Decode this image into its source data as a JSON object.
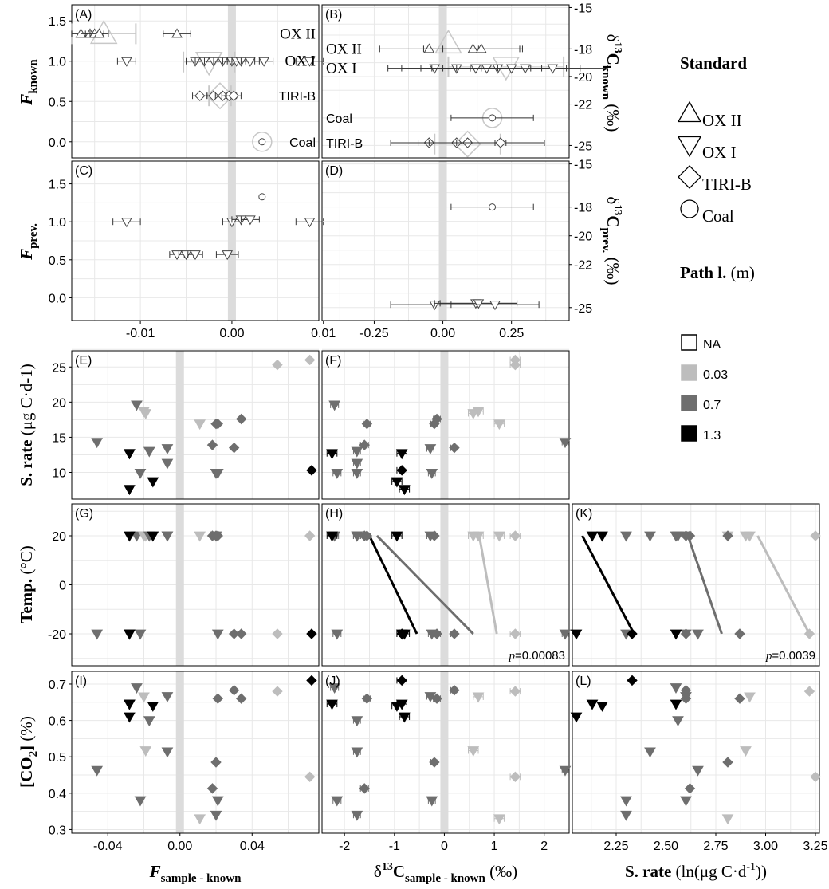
{
  "chart_data": {
    "type": "scatter",
    "colors": {
      "NA": "#ffffff",
      "0.03": "#bdbdbd",
      "0.7": "#6e6e6e",
      "1.3": "#000000",
      "ref": "#c8c8c8",
      "zero_band": "#dcdcdc"
    },
    "x_axes": {
      "F": {
        "label": "F",
        "sub": "sample - known",
        "ticks": [
          "-0.04",
          "0.00",
          "0.04"
        ]
      },
      "d13C": {
        "label": "δ13C",
        "sub": "sample - known",
        "unit": "(‰)",
        "ticks": [
          "-2",
          "-1",
          "0",
          "1",
          "2"
        ]
      },
      "srate": {
        "label": "S. rate",
        "unit": "(ln(μg C·d-1))",
        "ticks": [
          "2.25",
          "2.50",
          "2.75",
          "3.00",
          "3.25"
        ]
      },
      "F_top": {
        "ticks": [
          "-0.01",
          "0.00",
          "0.01"
        ]
      },
      "d13C_top": {
        "ticks": [
          "-0.25",
          "0.00",
          "0.25"
        ]
      }
    },
    "y_axes": {
      "F_known": {
        "label": "F",
        "sub": "known",
        "ticks": [
          "0.0",
          "0.5",
          "1.0",
          "1.5"
        ]
      },
      "d13C_known": {
        "label": "δ13C",
        "sub": "known",
        "unit": "(‰)",
        "ticks": [
          "-15",
          "-18",
          "-20",
          "-22",
          "-25"
        ]
      },
      "F_prev": {
        "label": "F",
        "sub": "prev.",
        "ticks": [
          "0.0",
          "0.5",
          "1.0",
          "1.5"
        ]
      },
      "d13C_prev": {
        "label": "δ13C",
        "sub": "prev.",
        "unit": "(‰)",
        "ticks": [
          "-15",
          "-18",
          "-20",
          "-22",
          "-25"
        ]
      },
      "srate": {
        "label": "S. rate",
        "unit": "(μg C·d-1)",
        "ticks": [
          "10",
          "15",
          "20",
          "25"
        ]
      },
      "temp": {
        "label": "Temp.",
        "unit": "(°C)",
        "ticks": [
          "-20",
          "0",
          "20"
        ]
      },
      "co2": {
        "label": "[CO2]",
        "unit": "(%)",
        "ticks": [
          "0.3",
          "0.4",
          "0.5",
          "0.6",
          "0.7"
        ]
      }
    },
    "panels": [
      {
        "id": "A",
        "label": "(A)",
        "annotations": [
          "OX II",
          "OX I",
          "TIRI-B",
          "Coal"
        ],
        "points": [
          {
            "s": "ox2",
            "x": -0.0165,
            "y": 1.34,
            "xe": 0.001
          },
          {
            "s": "ox2",
            "x": -0.0155,
            "y": 1.34,
            "xe": 0.001
          },
          {
            "s": "ox2",
            "x": -0.015,
            "y": 1.34,
            "xe": 0.001
          },
          {
            "s": "ox2",
            "x": -0.0145,
            "y": 1.34,
            "xe": 0.001
          },
          {
            "s": "ox2",
            "x": -0.006,
            "y": 1.34,
            "xe": 0.0015
          },
          {
            "s": "ox1",
            "x": -0.0115,
            "y": 1.0,
            "xe": 0.001
          },
          {
            "s": "ox1",
            "x": -0.004,
            "y": 1.0,
            "xe": 0.001
          },
          {
            "s": "ox1",
            "x": -0.003,
            "y": 1.0,
            "xe": 0.001
          },
          {
            "s": "ox1",
            "x": -0.002,
            "y": 1.0,
            "xe": 0.001
          },
          {
            "s": "ox1",
            "x": -0.001,
            "y": 1.0,
            "xe": 0.001
          },
          {
            "s": "ox1",
            "x": 0.0,
            "y": 1.0,
            "xe": 0.001
          },
          {
            "s": "ox1",
            "x": 0.0005,
            "y": 1.0,
            "xe": 0.001
          },
          {
            "s": "ox1",
            "x": 0.001,
            "y": 1.0,
            "xe": 0.001
          },
          {
            "s": "ox1",
            "x": 0.002,
            "y": 1.0,
            "xe": 0.001
          },
          {
            "s": "ox1",
            "x": 0.0035,
            "y": 1.0,
            "xe": 0.001
          },
          {
            "s": "ox1",
            "x": 0.0085,
            "y": 1.0,
            "xe": 0.0015
          },
          {
            "s": "tirib",
            "x": -0.0035,
            "y": 0.57,
            "xe": 0.0008
          },
          {
            "s": "tirib",
            "x": -0.002,
            "y": 0.57,
            "xe": 0.0008
          },
          {
            "s": "tirib",
            "x": -0.001,
            "y": 0.57,
            "xe": 0.0008
          },
          {
            "s": "tirib",
            "x": -0.0003,
            "y": 0.57,
            "xe": 0.0008
          },
          {
            "s": "tirib",
            "x": 0.0002,
            "y": 0.57,
            "xe": 0.0008
          },
          {
            "s": "coal",
            "x": 0.0033,
            "y": 0.0,
            "xe": 0
          }
        ],
        "refs": [
          {
            "s": "ox2",
            "x": -0.014,
            "y": 1.34,
            "xe": 0.0035
          },
          {
            "s": "ox1",
            "x": -0.0025,
            "y": 0.99,
            "xe": 0.0028
          },
          {
            "s": "tirib",
            "x": -0.0013,
            "y": 0.57,
            "xe": 0.0012
          },
          {
            "s": "coal",
            "x": 0.0033,
            "y": 0.0,
            "xe": 0
          }
        ]
      },
      {
        "id": "B",
        "label": "(B)",
        "annotations": [
          "OX II",
          "OX I",
          "Coal",
          "TIRI-B"
        ],
        "points": [
          {
            "s": "ox2",
            "x": -0.05,
            "y": -18.0,
            "xe": 0.18
          },
          {
            "s": "ox2",
            "x": 0.11,
            "y": -18.0,
            "xe": 0.18
          },
          {
            "s": "ox2",
            "x": 0.14,
            "y": -18.0,
            "xe": 0.14
          },
          {
            "s": "ox1",
            "x": -0.03,
            "y": -19.4,
            "xe": 0.17
          },
          {
            "s": "ox1",
            "x": 0.05,
            "y": -19.4,
            "xe": 0.2
          },
          {
            "s": "ox1",
            "x": 0.12,
            "y": -19.4,
            "xe": 0.2
          },
          {
            "s": "ox1",
            "x": 0.16,
            "y": -19.4,
            "xe": 0.2
          },
          {
            "s": "ox1",
            "x": 0.2,
            "y": -19.4,
            "xe": 0.2
          },
          {
            "s": "ox1",
            "x": 0.25,
            "y": -19.4,
            "xe": 0.2
          },
          {
            "s": "ox1",
            "x": 0.3,
            "y": -19.4,
            "xe": 0.2
          },
          {
            "s": "ox1",
            "x": 0.4,
            "y": -19.4,
            "xe": 0.2
          },
          {
            "s": "coal",
            "x": 0.18,
            "y": -23.0,
            "xe": 0.15
          },
          {
            "s": "tirib",
            "x": -0.05,
            "y": -24.8,
            "xe": 0.14
          },
          {
            "s": "tirib",
            "x": 0.05,
            "y": -24.8,
            "xe": 0.14
          },
          {
            "s": "tirib",
            "x": 0.09,
            "y": -24.8,
            "xe": 0.14
          },
          {
            "s": "tirib",
            "x": 0.21,
            "y": -24.8,
            "xe": 0.16
          }
        ],
        "refs": [
          {
            "s": "ox2",
            "x": 0.02,
            "y": -17.6,
            "xe": 0.0
          },
          {
            "s": "ox1",
            "x": 0.23,
            "y": -19.3,
            "xe": 0.21
          },
          {
            "s": "coal",
            "x": 0.18,
            "y": -23.0,
            "xe": 0
          },
          {
            "s": "tirib",
            "x": 0.09,
            "y": -24.9,
            "xe": 0.12
          }
        ]
      },
      {
        "id": "C",
        "label": "(C)",
        "points": [
          {
            "s": "coal",
            "x": 0.0033,
            "y": 1.33,
            "xe": 0
          },
          {
            "s": "ox1",
            "x": -0.0115,
            "y": 1.0,
            "xe": 0.0015
          },
          {
            "s": "ox1",
            "x": 0.0,
            "y": 1.0,
            "xe": 0.001
          },
          {
            "s": "ox1",
            "x": 0.001,
            "y": 1.03,
            "xe": 0.001
          },
          {
            "s": "ox1",
            "x": 0.002,
            "y": 1.03,
            "xe": 0.001
          },
          {
            "s": "ox1",
            "x": 0.0085,
            "y": 1.0,
            "xe": 0.0015
          },
          {
            "s": "ox1",
            "x": -0.006,
            "y": 0.57,
            "xe": 0.0008
          },
          {
            "s": "ox1",
            "x": -0.005,
            "y": 0.57,
            "xe": 0.0008
          },
          {
            "s": "ox1",
            "x": -0.004,
            "y": 0.57,
            "xe": 0.0008
          },
          {
            "s": "ox1",
            "x": -0.0005,
            "y": 0.57,
            "xe": 0.0012
          }
        ]
      },
      {
        "id": "D",
        "label": "(D)",
        "points": [
          {
            "s": "coal",
            "x": 0.18,
            "y": -18.0,
            "xe": 0.15
          },
          {
            "s": "ox1",
            "x": -0.03,
            "y": -24.8,
            "xe": 0.16
          },
          {
            "s": "ox1",
            "x": 0.12,
            "y": -24.7,
            "xe": 0.15
          },
          {
            "s": "ox1",
            "x": 0.13,
            "y": -24.7,
            "xe": 0.14
          },
          {
            "s": "ox1",
            "x": 0.19,
            "y": -24.8,
            "xe": 0.16
          }
        ]
      },
      {
        "id": "E",
        "label": "(E)"
      },
      {
        "id": "F",
        "label": "(F)"
      },
      {
        "id": "G",
        "label": "(G)"
      },
      {
        "id": "H",
        "label": "(H)",
        "pvalue": "p=0.00083"
      },
      {
        "id": "K",
        "label": "(K)",
        "pvalue": "p=0.0039"
      },
      {
        "id": "I",
        "label": "(I)"
      },
      {
        "id": "J",
        "label": "(J)"
      },
      {
        "id": "L",
        "label": "(L)"
      }
    ],
    "samples": [
      {
        "g": "0.7",
        "m": "tri",
        "F": -0.046,
        "d": 2.42,
        "dx": 0.06,
        "ln": 2.66,
        "s": 14.3,
        "t": -20,
        "c": 0.463
      },
      {
        "g": "0.7",
        "m": "tri",
        "F": -0.024,
        "d": -2.2,
        "dx": 0.08,
        "ln": 2.55,
        "s": 19.6,
        "t": 20,
        "c": 0.69
      },
      {
        "g": "0.03",
        "m": "tri",
        "F": -0.02,
        "d": 0.68,
        "dx": 0.1,
        "ln": 2.92,
        "s": 18.7,
        "t": 20,
        "c": 0.665
      },
      {
        "g": "0.03",
        "m": "tri",
        "F": -0.019,
        "d": 0.58,
        "dx": 0.1,
        "ln": 2.9,
        "s": 18.4,
        "t": 20,
        "c": 0.517
      },
      {
        "g": "0.7",
        "m": "tri",
        "F": -0.017,
        "d": -1.75,
        "dx": 0.07,
        "ln": 2.56,
        "s": 13.0,
        "t": 20,
        "c": 0.6
      },
      {
        "g": "0.7",
        "m": "tri",
        "F": -0.007,
        "d": -1.75,
        "dx": 0.07,
        "ln": 2.42,
        "s": 11.3,
        "t": 20,
        "c": 0.514
      },
      {
        "g": "0.7",
        "m": "tri",
        "F": -0.007,
        "d": -0.28,
        "dx": 0.07,
        "ln": 2.6,
        "s": 13.4,
        "t": 20,
        "c": 0.666
      },
      {
        "g": "0.7",
        "m": "tri",
        "F": -0.022,
        "d": -2.15,
        "dx": 0.08,
        "ln": 2.3,
        "s": 9.9,
        "t": -20,
        "c": 0.38
      },
      {
        "g": "0.7",
        "m": "tri",
        "F": 0.02,
        "d": -1.75,
        "dx": 0.07,
        "ln": 2.3,
        "s": 9.9,
        "t": 20,
        "c": 0.34
      },
      {
        "g": "0.7",
        "m": "tri",
        "F": 0.021,
        "d": -0.25,
        "dx": 0.07,
        "ln": 2.6,
        "s": 9.9,
        "t": -20,
        "c": 0.38
      },
      {
        "g": "0.03",
        "m": "tri",
        "F": 0.011,
        "d": 1.1,
        "dx": 0.1,
        "ln": 2.81,
        "s": 16.9,
        "t": 20,
        "c": 0.33
      },
      {
        "g": "1.3",
        "m": "tri",
        "F": -0.028,
        "d": -2.25,
        "dx": 0.1,
        "ln": 2.13,
        "s": 12.7,
        "t": 20,
        "c": 0.645
      },
      {
        "g": "1.3",
        "m": "tri",
        "F": -0.028,
        "d": -0.8,
        "dx": 0.1,
        "ln": 2.05,
        "s": 7.6,
        "t": -20,
        "c": 0.61
      },
      {
        "g": "1.3",
        "m": "tri",
        "F": -0.015,
        "d": -0.95,
        "dx": 0.1,
        "ln": 2.18,
        "s": 8.7,
        "t": 20,
        "c": 0.64
      },
      {
        "g": "1.3",
        "m": "tri",
        "F": -0.028,
        "d": -0.85,
        "dx": 0.1,
        "ln": 2.55,
        "s": 12.7,
        "t": -20,
        "c": 0.645
      },
      {
        "g": "1.3",
        "m": "dia",
        "F": 0.073,
        "d": -0.85,
        "dx": 0.1,
        "ln": 2.33,
        "s": 10.3,
        "t": -20,
        "c": 0.71
      },
      {
        "g": "0.7",
        "m": "dia",
        "F": 0.018,
        "d": -1.6,
        "dx": 0.08,
        "ln": 2.62,
        "s": 13.9,
        "t": 20,
        "c": 0.413
      },
      {
        "g": "0.7",
        "m": "dia",
        "F": 0.02,
        "d": -0.2,
        "dx": 0.07,
        "ln": 2.81,
        "s": 16.9,
        "t": 20,
        "c": 0.485
      },
      {
        "g": "0.7",
        "m": "dia",
        "F": 0.03,
        "d": 0.2,
        "dx": 0.07,
        "ln": 2.6,
        "s": 13.5,
        "t": -20,
        "c": 0.683
      },
      {
        "g": "0.7",
        "m": "dia",
        "F": 0.034,
        "d": -0.15,
        "dx": 0.07,
        "ln": 2.87,
        "s": 17.6,
        "t": -20,
        "c": 0.66
      },
      {
        "g": "0.7",
        "m": "dia",
        "F": 0.021,
        "d": -1.55,
        "dx": 0.07,
        "ln": 2.6,
        "s": 16.9,
        "t": 20,
        "c": 0.66
      },
      {
        "g": "0.03",
        "m": "dia",
        "F": 0.054,
        "d": 1.42,
        "dx": 0.1,
        "ln": 3.22,
        "s": 25.3,
        "t": -20,
        "c": 0.68
      },
      {
        "g": "0.03",
        "m": "dia",
        "F": 0.072,
        "d": 1.42,
        "dx": 0.1,
        "ln": 3.25,
        "s": 26.0,
        "t": 20,
        "c": 0.445
      }
    ],
    "fits": {
      "H": [
        {
          "g": "1.3",
          "x1": -1.5,
          "y1": 20,
          "x2": -0.55,
          "y2": -20
        },
        {
          "g": "0.7",
          "x1": -1.35,
          "y1": 20,
          "x2": 0.58,
          "y2": -20
        },
        {
          "g": "0.03",
          "x1": 0.7,
          "y1": 20,
          "x2": 1.05,
          "y2": -20
        }
      ],
      "K": [
        {
          "g": "1.3",
          "x1": 2.08,
          "y1": 20,
          "x2": 2.34,
          "y2": -20
        },
        {
          "g": "0.7",
          "x1": 2.61,
          "y1": 20,
          "x2": 2.78,
          "y2": -20
        },
        {
          "g": "0.03",
          "x1": 2.96,
          "y1": 20,
          "x2": 3.22,
          "y2": -20
        }
      ]
    },
    "legend": {
      "standard_title": "Standard",
      "standard_items": [
        {
          "shape": "tri",
          "label": "OX II"
        },
        {
          "shape": "tri-down",
          "label": "OX I"
        },
        {
          "shape": "diamond",
          "label": "TIRI-B"
        },
        {
          "shape": "circle",
          "label": "Coal"
        }
      ],
      "path_title": "Path l.",
      "path_unit": "(m)",
      "path_items": [
        {
          "color": "#ffffff",
          "label": "NA"
        },
        {
          "color": "#bdbdbd",
          "label": "0.03"
        },
        {
          "color": "#6e6e6e",
          "label": "0.7"
        },
        {
          "color": "#000000",
          "label": "1.3"
        }
      ]
    }
  }
}
